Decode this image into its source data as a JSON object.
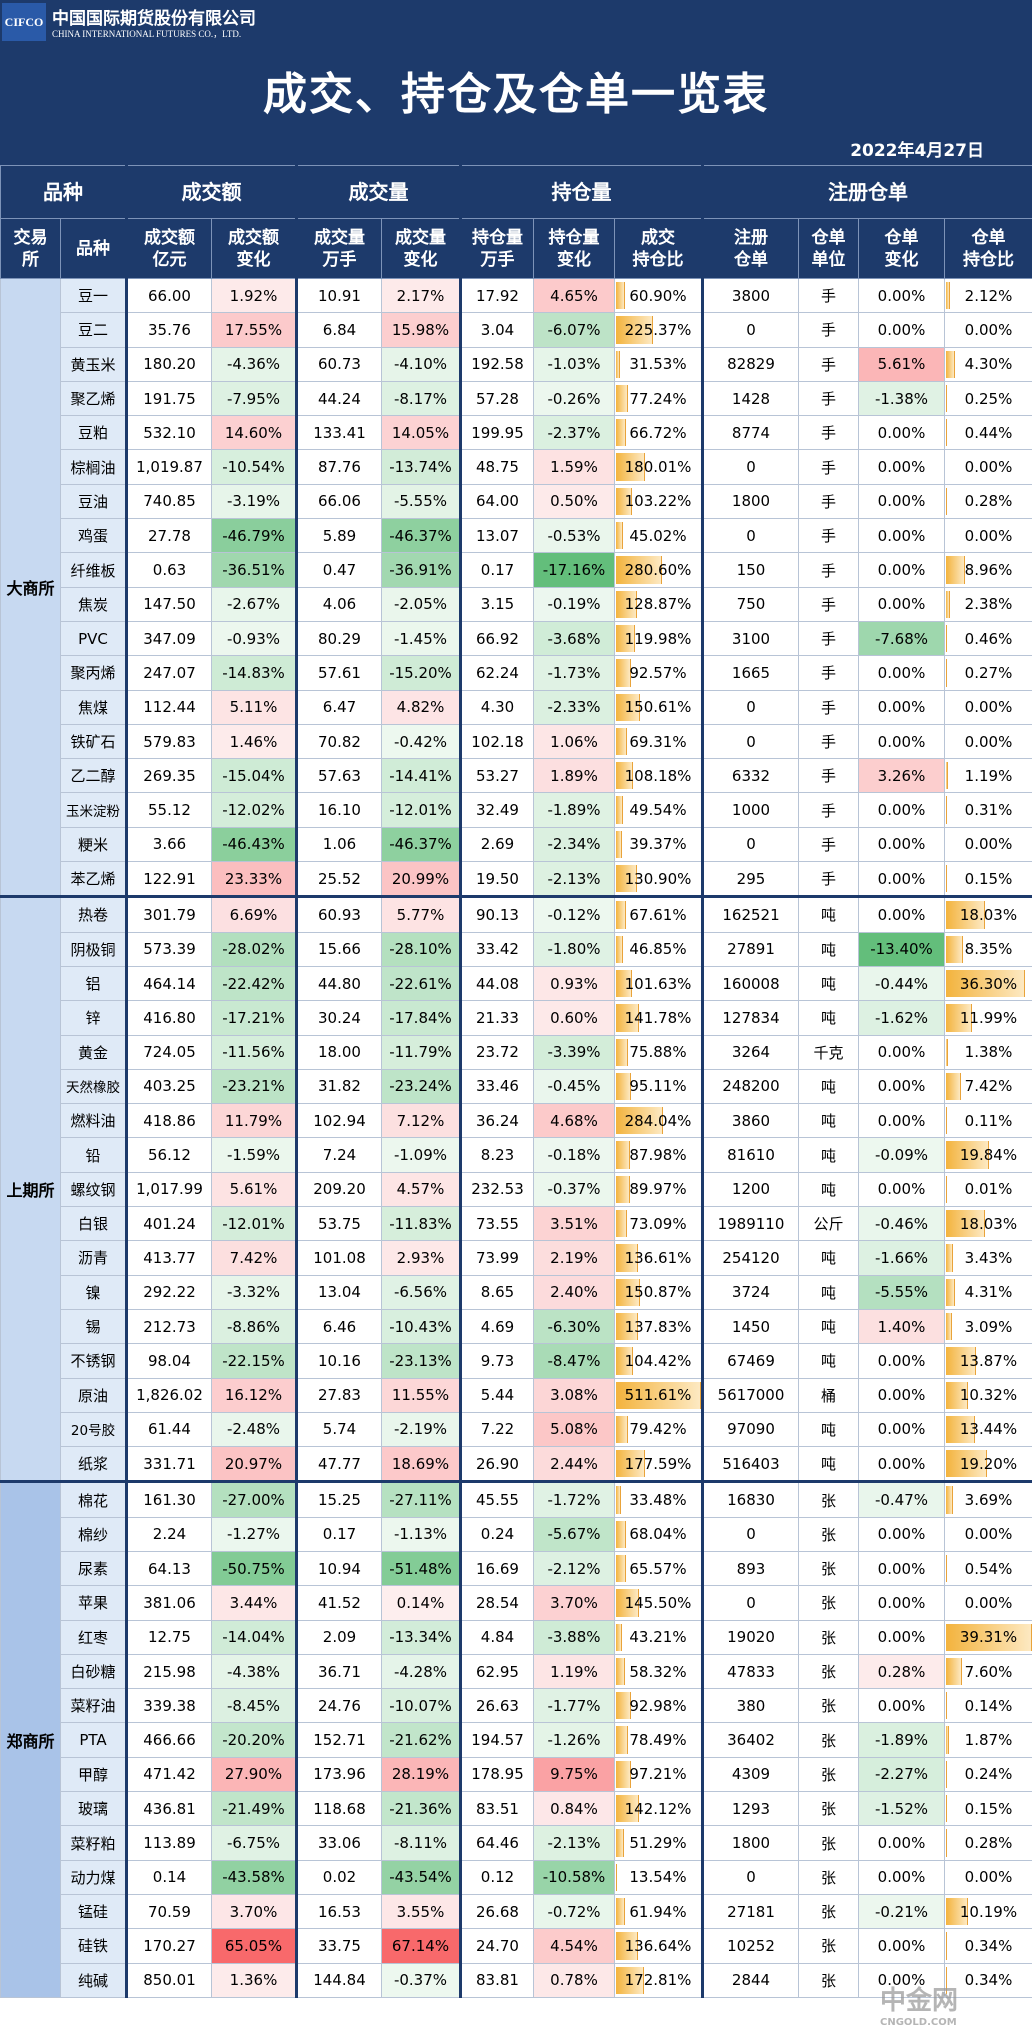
{
  "header": {
    "logo": "CIFCO",
    "company_cn": "中国国际期货股份有限公司",
    "company_en": "CHINA INTERNATIONAL FUTURES CO.，LTD.",
    "title": "成交、持仓及仓单一览表",
    "date": "2022年4月27日"
  },
  "table": {
    "group_headers": [
      "品种",
      "成交额",
      "成交量",
      "持仓量",
      "注册仓单"
    ],
    "columns": [
      "交易\n所",
      "品种",
      "成交额\n亿元",
      "成交额\n变化",
      "成交量\n万手",
      "成交量\n变化",
      "持仓量\n万手",
      "持仓量\n变化",
      "成交\n持仓比",
      "注册\n仓单",
      "仓单\n单位",
      "仓单\n变化",
      "仓单\n持仓比"
    ],
    "exchanges": [
      {
        "name": "大商所",
        "rows": [
          [
            "豆一",
            "66.00",
            "1.92%",
            "10.91",
            "2.17%",
            "17.92",
            "4.65%",
            "60.90%",
            "3800",
            "手",
            "0.00%",
            "2.12%"
          ],
          [
            "豆二",
            "35.76",
            "17.55%",
            "6.84",
            "15.98%",
            "3.04",
            "-6.07%",
            "225.37%",
            "0",
            "手",
            "0.00%",
            "0.00%"
          ],
          [
            "黄玉米",
            "180.20",
            "-4.36%",
            "60.73",
            "-4.10%",
            "192.58",
            "-1.03%",
            "31.53%",
            "82829",
            "手",
            "5.61%",
            "4.30%"
          ],
          [
            "聚乙烯",
            "191.75",
            "-7.95%",
            "44.24",
            "-8.17%",
            "57.28",
            "-0.26%",
            "77.24%",
            "1428",
            "手",
            "-1.38%",
            "0.25%"
          ],
          [
            "豆粕",
            "532.10",
            "14.60%",
            "133.41",
            "14.05%",
            "199.95",
            "-2.37%",
            "66.72%",
            "8774",
            "手",
            "0.00%",
            "0.44%"
          ],
          [
            "棕榈油",
            "1,019.87",
            "-10.54%",
            "87.76",
            "-13.74%",
            "48.75",
            "1.59%",
            "180.01%",
            "0",
            "手",
            "0.00%",
            "0.00%"
          ],
          [
            "豆油",
            "740.85",
            "-3.19%",
            "66.06",
            "-5.55%",
            "64.00",
            "0.50%",
            "103.22%",
            "1800",
            "手",
            "0.00%",
            "0.28%"
          ],
          [
            "鸡蛋",
            "27.78",
            "-46.79%",
            "5.89",
            "-46.37%",
            "13.07",
            "-0.53%",
            "45.02%",
            "0",
            "手",
            "0.00%",
            "0.00%"
          ],
          [
            "纤维板",
            "0.63",
            "-36.51%",
            "0.47",
            "-36.91%",
            "0.17",
            "-17.16%",
            "280.60%",
            "150",
            "手",
            "0.00%",
            "8.96%"
          ],
          [
            "焦炭",
            "147.50",
            "-2.67%",
            "4.06",
            "-2.05%",
            "3.15",
            "-0.19%",
            "128.87%",
            "750",
            "手",
            "0.00%",
            "2.38%"
          ],
          [
            "PVC",
            "347.09",
            "-0.93%",
            "80.29",
            "-1.45%",
            "66.92",
            "-3.68%",
            "119.98%",
            "3100",
            "手",
            "-7.68%",
            "0.46%"
          ],
          [
            "聚丙烯",
            "247.07",
            "-14.83%",
            "57.61",
            "-15.20%",
            "62.24",
            "-1.73%",
            "92.57%",
            "1665",
            "手",
            "0.00%",
            "0.27%"
          ],
          [
            "焦煤",
            "112.44",
            "5.11%",
            "6.47",
            "4.82%",
            "4.30",
            "-2.33%",
            "150.61%",
            "0",
            "手",
            "0.00%",
            "0.00%"
          ],
          [
            "铁矿石",
            "579.83",
            "1.46%",
            "70.82",
            "-0.42%",
            "102.18",
            "1.06%",
            "69.31%",
            "0",
            "手",
            "0.00%",
            "0.00%"
          ],
          [
            "乙二醇",
            "269.35",
            "-15.04%",
            "57.63",
            "-14.41%",
            "53.27",
            "1.89%",
            "108.18%",
            "6332",
            "手",
            "3.26%",
            "1.19%"
          ],
          [
            "玉米淀粉",
            "55.12",
            "-12.02%",
            "16.10",
            "-12.01%",
            "32.49",
            "-1.89%",
            "49.54%",
            "1000",
            "手",
            "0.00%",
            "0.31%"
          ],
          [
            "粳米",
            "3.66",
            "-46.43%",
            "1.06",
            "-46.37%",
            "2.69",
            "-2.34%",
            "39.37%",
            "0",
            "手",
            "0.00%",
            "0.00%"
          ],
          [
            "苯乙烯",
            "122.91",
            "23.33%",
            "25.52",
            "20.99%",
            "19.50",
            "-2.13%",
            "130.90%",
            "295",
            "手",
            "0.00%",
            "0.15%"
          ]
        ]
      },
      {
        "name": "上期所",
        "rows": [
          [
            "热卷",
            "301.79",
            "6.69%",
            "60.93",
            "5.77%",
            "90.13",
            "-0.12%",
            "67.61%",
            "162521",
            "吨",
            "0.00%",
            "18.03%"
          ],
          [
            "阴极铜",
            "573.39",
            "-28.02%",
            "15.66",
            "-28.10%",
            "33.42",
            "-1.80%",
            "46.85%",
            "27891",
            "吨",
            "-13.40%",
            "8.35%"
          ],
          [
            "铝",
            "464.14",
            "-22.42%",
            "44.80",
            "-22.61%",
            "44.08",
            "0.93%",
            "101.63%",
            "160008",
            "吨",
            "-0.44%",
            "36.30%"
          ],
          [
            "锌",
            "416.80",
            "-17.21%",
            "30.24",
            "-17.84%",
            "21.33",
            "0.60%",
            "141.78%",
            "127834",
            "吨",
            "-1.62%",
            "11.99%"
          ],
          [
            "黄金",
            "724.05",
            "-11.56%",
            "18.00",
            "-11.79%",
            "23.72",
            "-3.39%",
            "75.88%",
            "3264",
            "千克",
            "0.00%",
            "1.38%"
          ],
          [
            "天然橡胶",
            "403.25",
            "-23.21%",
            "31.82",
            "-23.24%",
            "33.46",
            "-0.45%",
            "95.11%",
            "248200",
            "吨",
            "0.00%",
            "7.42%"
          ],
          [
            "燃料油",
            "418.86",
            "11.79%",
            "102.94",
            "7.12%",
            "36.24",
            "4.68%",
            "284.04%",
            "3860",
            "吨",
            "0.00%",
            "0.11%"
          ],
          [
            "铅",
            "56.12",
            "-1.59%",
            "7.24",
            "-1.09%",
            "8.23",
            "-0.18%",
            "87.98%",
            "81610",
            "吨",
            "-0.09%",
            "19.84%"
          ],
          [
            "螺纹钢",
            "1,017.99",
            "5.61%",
            "209.20",
            "4.57%",
            "232.53",
            "-0.37%",
            "89.97%",
            "1200",
            "吨",
            "0.00%",
            "0.01%"
          ],
          [
            "白银",
            "401.24",
            "-12.01%",
            "53.75",
            "-11.83%",
            "73.55",
            "3.51%",
            "73.09%",
            "1989110",
            "公斤",
            "-0.46%",
            "18.03%"
          ],
          [
            "沥青",
            "413.77",
            "7.42%",
            "101.08",
            "2.93%",
            "73.99",
            "2.19%",
            "136.61%",
            "254120",
            "吨",
            "-1.66%",
            "3.43%"
          ],
          [
            "镍",
            "292.22",
            "-3.32%",
            "13.04",
            "-6.56%",
            "8.65",
            "2.40%",
            "150.87%",
            "3724",
            "吨",
            "-5.55%",
            "4.31%"
          ],
          [
            "锡",
            "212.73",
            "-8.86%",
            "6.46",
            "-10.43%",
            "4.69",
            "-6.30%",
            "137.83%",
            "1450",
            "吨",
            "1.40%",
            "3.09%"
          ],
          [
            "不锈钢",
            "98.04",
            "-22.15%",
            "10.16",
            "-23.13%",
            "9.73",
            "-8.47%",
            "104.42%",
            "67469",
            "吨",
            "0.00%",
            "13.87%"
          ],
          [
            "原油",
            "1,826.02",
            "16.12%",
            "27.83",
            "11.55%",
            "5.44",
            "3.08%",
            "511.61%",
            "5617000",
            "桶",
            "0.00%",
            "10.32%"
          ],
          [
            "20号胶",
            "61.44",
            "-2.48%",
            "5.74",
            "-2.19%",
            "7.22",
            "5.08%",
            "79.42%",
            "97090",
            "吨",
            "0.00%",
            "13.44%"
          ],
          [
            "纸浆",
            "331.71",
            "20.97%",
            "47.77",
            "18.69%",
            "26.90",
            "2.44%",
            "177.59%",
            "516403",
            "吨",
            "0.00%",
            "19.20%"
          ]
        ]
      },
      {
        "name": "郑商所",
        "rows": [
          [
            "棉花",
            "161.30",
            "-27.00%",
            "15.25",
            "-27.11%",
            "45.55",
            "-1.72%",
            "33.48%",
            "16830",
            "张",
            "-0.47%",
            "3.69%"
          ],
          [
            "棉纱",
            "2.24",
            "-1.27%",
            "0.17",
            "-1.13%",
            "0.24",
            "-5.67%",
            "68.04%",
            "0",
            "张",
            "0.00%",
            "0.00%"
          ],
          [
            "尿素",
            "64.13",
            "-50.75%",
            "10.94",
            "-51.48%",
            "16.69",
            "-2.12%",
            "65.57%",
            "893",
            "张",
            "0.00%",
            "0.54%"
          ],
          [
            "苹果",
            "381.06",
            "3.44%",
            "41.52",
            "0.14%",
            "28.54",
            "3.70%",
            "145.50%",
            "0",
            "张",
            "0.00%",
            "0.00%"
          ],
          [
            "红枣",
            "12.75",
            "-14.04%",
            "2.09",
            "-13.34%",
            "4.84",
            "-3.88%",
            "43.21%",
            "19020",
            "张",
            "0.00%",
            "39.31%"
          ],
          [
            "白砂糖",
            "215.98",
            "-4.38%",
            "36.71",
            "-4.28%",
            "62.95",
            "1.19%",
            "58.32%",
            "47833",
            "张",
            "0.28%",
            "7.60%"
          ],
          [
            "菜籽油",
            "339.38",
            "-8.45%",
            "24.76",
            "-10.07%",
            "26.63",
            "-1.77%",
            "92.98%",
            "380",
            "张",
            "0.00%",
            "0.14%"
          ],
          [
            "PTA",
            "466.66",
            "-20.20%",
            "152.71",
            "-21.62%",
            "194.57",
            "-1.26%",
            "78.49%",
            "36402",
            "张",
            "-1.89%",
            "1.87%"
          ],
          [
            "甲醇",
            "471.42",
            "27.90%",
            "173.96",
            "28.19%",
            "178.95",
            "9.75%",
            "97.21%",
            "4309",
            "张",
            "-2.27%",
            "0.24%"
          ],
          [
            "玻璃",
            "436.81",
            "-21.49%",
            "118.68",
            "-21.36%",
            "83.51",
            "0.84%",
            "142.12%",
            "1293",
            "张",
            "-1.52%",
            "0.15%"
          ],
          [
            "菜籽粕",
            "113.89",
            "-6.75%",
            "33.06",
            "-8.11%",
            "64.46",
            "-2.13%",
            "51.29%",
            "1800",
            "张",
            "0.00%",
            "0.28%"
          ],
          [
            "动力煤",
            "0.14",
            "-43.58%",
            "0.02",
            "-43.54%",
            "0.12",
            "-10.58%",
            "13.54%",
            "0",
            "张",
            "0.00%",
            "0.00%"
          ],
          [
            "锰硅",
            "70.59",
            "3.70%",
            "16.53",
            "3.55%",
            "26.68",
            "-0.72%",
            "61.94%",
            "27181",
            "张",
            "-0.21%",
            "10.19%"
          ],
          [
            "硅铁",
            "170.27",
            "65.05%",
            "33.75",
            "67.14%",
            "24.70",
            "4.54%",
            "136.64%",
            "10252",
            "张",
            "0.00%",
            "0.34%"
          ],
          [
            "纯碱",
            "850.01",
            "1.36%",
            "144.84",
            "-0.37%",
            "83.81",
            "0.78%",
            "172.81%",
            "2844",
            "张",
            "0.00%",
            "0.34%"
          ]
        ]
      }
    ]
  },
  "watermark": {
    "name": "中金网",
    "site": "CNGOLD.COM"
  }
}
